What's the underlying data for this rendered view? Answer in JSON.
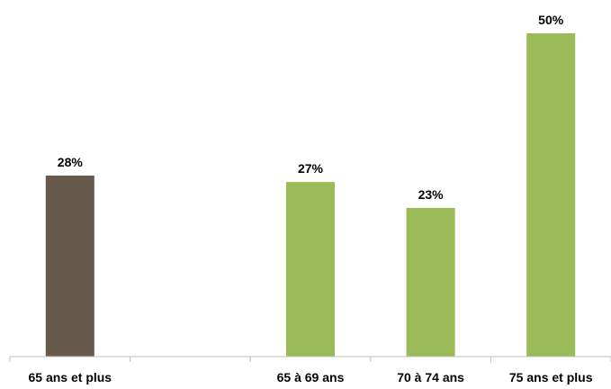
{
  "chart_data": {
    "type": "bar",
    "categories": [
      "65 ans et plus",
      "",
      "65 à 69 ans",
      "70 à 74 ans",
      "75 ans et plus"
    ],
    "values": [
      28,
      null,
      27,
      23,
      50
    ],
    "value_labels": [
      "28%",
      "",
      "27%",
      "23%",
      "50%"
    ],
    "colors": [
      "#675a4c",
      null,
      "#9bbb59",
      "#9bbb59",
      "#9bbb59"
    ],
    "ylim": [
      0,
      50
    ],
    "unit": "%",
    "grid": false,
    "legend": "none"
  }
}
